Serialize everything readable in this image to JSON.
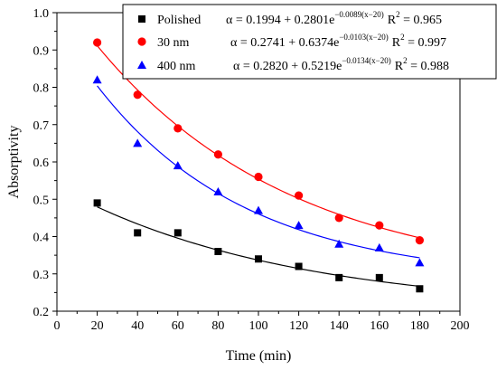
{
  "chart_data": {
    "type": "scatter",
    "xlabel": "Time (min)",
    "ylabel": "Absorptivity",
    "xlim": [
      0,
      200
    ],
    "ylim": [
      0.2,
      1.0
    ],
    "xticks": [
      "0",
      "20",
      "40",
      "60",
      "80",
      "100",
      "120",
      "140",
      "160",
      "180",
      "200"
    ],
    "yticks": [
      "0.2",
      "0.3",
      "0.4",
      "0.5",
      "0.6",
      "0.7",
      "0.8",
      "0.9",
      "1.0"
    ],
    "grid": false,
    "legend_position": "top-right",
    "x": [
      20,
      40,
      60,
      80,
      100,
      120,
      140,
      160,
      180
    ],
    "series": [
      {
        "name": "Polished",
        "marker": "square",
        "color": "#000000",
        "values": [
          0.49,
          0.41,
          0.41,
          0.36,
          0.34,
          0.32,
          0.29,
          0.29,
          0.26
        ],
        "fit": {
          "a": 0.1994,
          "b": 0.2801,
          "k": 0.0089,
          "x0": 20
        },
        "eq_lead": "α = 0.1994 + 0.2801e",
        "eq_exp": "−0.0089(x−20)",
        "r2": "R",
        "r2_val": " = 0.965"
      },
      {
        "name": "30 nm",
        "marker": "circle",
        "color": "#ff0000",
        "values": [
          0.92,
          0.78,
          0.69,
          0.62,
          0.56,
          0.51,
          0.45,
          0.43,
          0.39
        ],
        "fit": {
          "a": 0.2741,
          "b": 0.6374,
          "k": 0.0103,
          "x0": 20
        },
        "eq_lead": "α = 0.2741 + 0.6374e",
        "eq_exp": "−0.0103(x−20)",
        "r2": "R",
        "r2_val": " = 0.997"
      },
      {
        "name": "400 nm",
        "marker": "triangle",
        "color": "#0000ff",
        "values": [
          0.82,
          0.65,
          0.59,
          0.52,
          0.47,
          0.43,
          0.38,
          0.37,
          0.33
        ],
        "fit": {
          "a": 0.282,
          "b": 0.5219,
          "k": 0.0134,
          "x0": 20
        },
        "eq_lead": "α = 0.2820 + 0.5219e",
        "eq_exp": "−0.0134(x−20)",
        "r2": "R",
        "r2_val": " = 0.988"
      }
    ]
  }
}
